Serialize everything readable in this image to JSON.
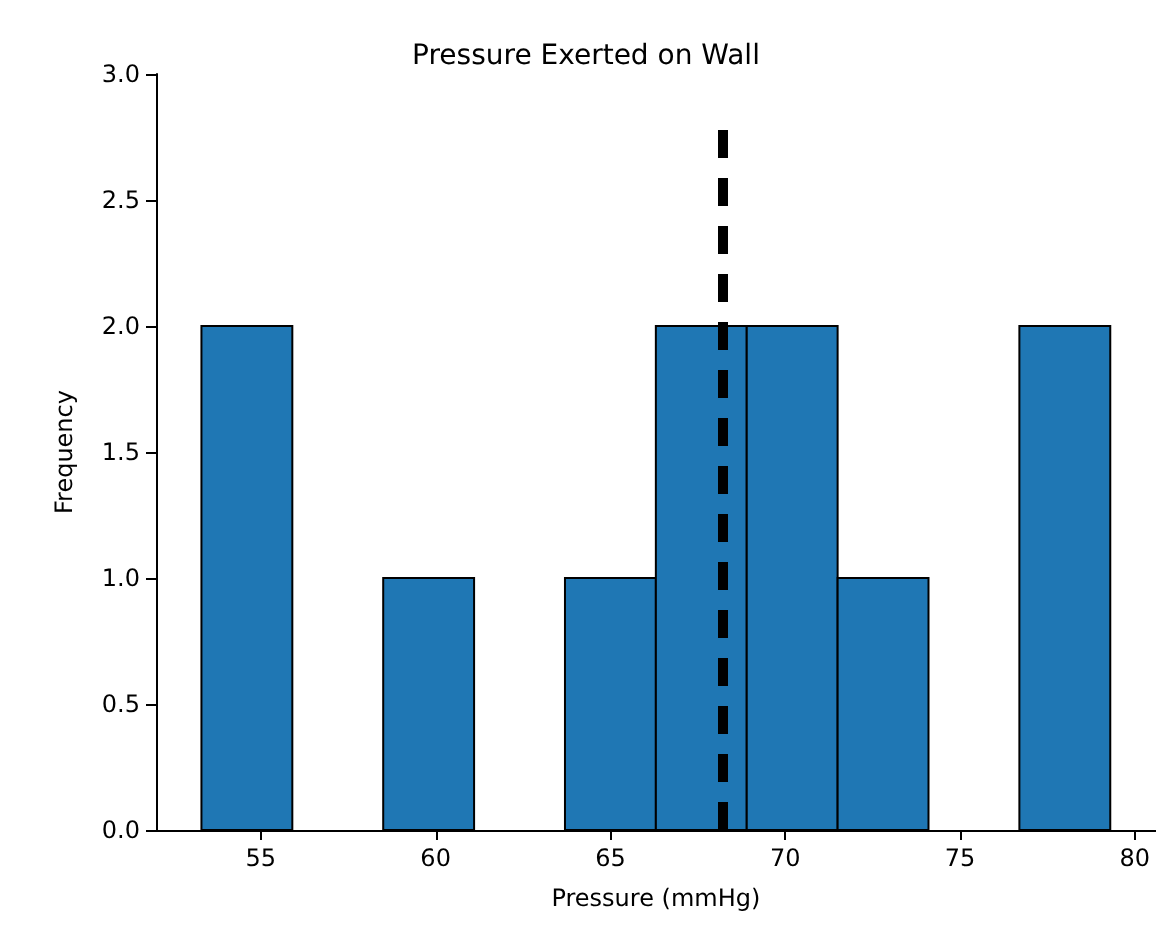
{
  "chart_data": {
    "type": "histogram",
    "title": "Pressure Exerted on Wall",
    "xlabel": "Pressure (mmHg)",
    "ylabel": "Frequency",
    "bins": [
      53.3,
      55.9,
      58.5,
      61.1,
      63.7,
      66.3,
      68.9,
      71.5,
      74.1,
      76.7,
      79.3
    ],
    "values": [
      2,
      0,
      1,
      0,
      1,
      2,
      2,
      1,
      0,
      2
    ],
    "color": "#1f77b4",
    "xlim": [
      52.0,
      80.6
    ],
    "xticks": [
      55,
      60,
      65,
      70,
      75,
      80
    ],
    "ylim": [
      0,
      3
    ],
    "yticks": [
      {
        "value": 0,
        "label": "0.0"
      },
      0.5,
      {
        "value": 1,
        "label": "1.0"
      },
      1.5,
      {
        "value": 2,
        "label": "2.0"
      },
      2.5,
      {
        "value": 3,
        "label": "3.0"
      }
    ],
    "ref_lines": [
      {
        "axis": "x",
        "value": 68.2,
        "color": "#000000",
        "line_style": "dashed"
      }
    ],
    "grid": false
  }
}
